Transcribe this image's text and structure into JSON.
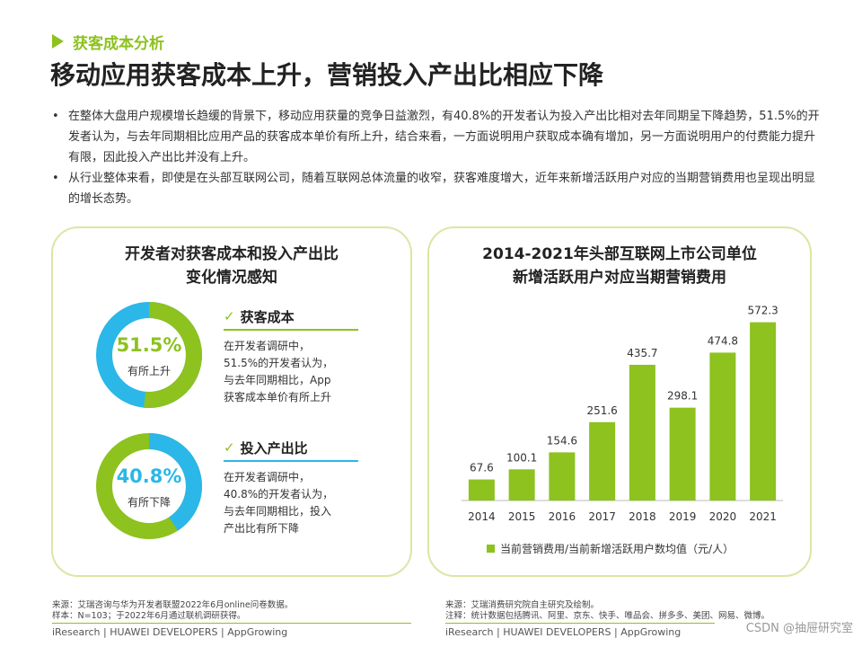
{
  "section_tag": "获客成本分析",
  "headline": "移动应用获客成本上升，营销投入产出比相应下降",
  "bullets": [
    "在整体大盘用户规模增长趋缓的背景下，移动应用获量的竞争日益激烈，有40.8%的开发者认为投入产出比相对去年同期呈下降趋势，51.5%的开发者认为，与去年同期相比应用产品的获客成本单价有所上升，结合来看，一方面说明用户获取成本确有增加，另一方面说明用户的付费能力提升有限，因此投入产出比并没有上升。",
    "从行业整体来看，即使是在头部互联网公司，随着互联网总体流量的收窄，获客难度增大，近年来新增活跃用户对应的当期营销费用也呈现出明显的增长态势。"
  ],
  "left_panel": {
    "title_line1": "开发者对获客成本和投入产出比",
    "title_line2": "变化情况感知",
    "donut1": {
      "percent_text": "51.5%",
      "value": 0.515,
      "label": "有所上升",
      "color": "#8dc21f",
      "rest_color": "#2bb7e8"
    },
    "donut2": {
      "percent_text": "40.8%",
      "value": 0.408,
      "label": "有所下降",
      "color": "#2bb7e8",
      "rest_color": "#8dc21f"
    },
    "info1": {
      "check": "✓",
      "heading": "获客成本",
      "lines": [
        "在开发者调研中，",
        "51.5%的开发者认为，",
        "与去年同期相比，App",
        "获客成本单价有所上升"
      ]
    },
    "info2": {
      "check": "✓",
      "heading": "投入产出比",
      "lines": [
        "在开发者调研中，",
        "40.8%的开发者认为，",
        "与去年同期相比，投入",
        "产出比有所下降"
      ]
    }
  },
  "chart_data": {
    "type": "bar",
    "title_line1": "2014-2021年头部互联网上市公司单位",
    "title_line2": "新增活跃用户对应当期营销费用",
    "categories": [
      "2014",
      "2015",
      "2016",
      "2017",
      "2018",
      "2019",
      "2020",
      "2021"
    ],
    "series": [
      {
        "name": "当前营销费用/当前新增活跃用户数均值（元/人）",
        "values": [
          67.6,
          100.1,
          154.6,
          251.6,
          435.7,
          298.1,
          474.8,
          572.3
        ],
        "color": "#8dc21f"
      }
    ],
    "value_labels": [
      "67.6",
      "100.1",
      "154.6",
      "251.6",
      "435.7",
      "298.1",
      "474.8",
      "572.3"
    ],
    "ylim": [
      0,
      600
    ],
    "grid": false,
    "legend_position": "bottom"
  },
  "source_left": [
    "来源：艾瑞咨询与华为开发者联盟2022年6月online问卷数据。",
    "样本：N=103；于2022年6月通过联机调研获得。"
  ],
  "source_right": [
    "来源：艾瑞消费研究院自主研究及绘制。",
    "注释：统计数据包括腾讯、阿里、京东、快手、唯品会、拼多多、美团、网易、微博。"
  ],
  "footer_left": "iResearch | HUAWEI DEVELOPERS | AppGrowing",
  "footer_right": "iResearch | HUAWEI DEVELOPERS | AppGrowing",
  "watermark": "CSDN @抽屉研究室"
}
